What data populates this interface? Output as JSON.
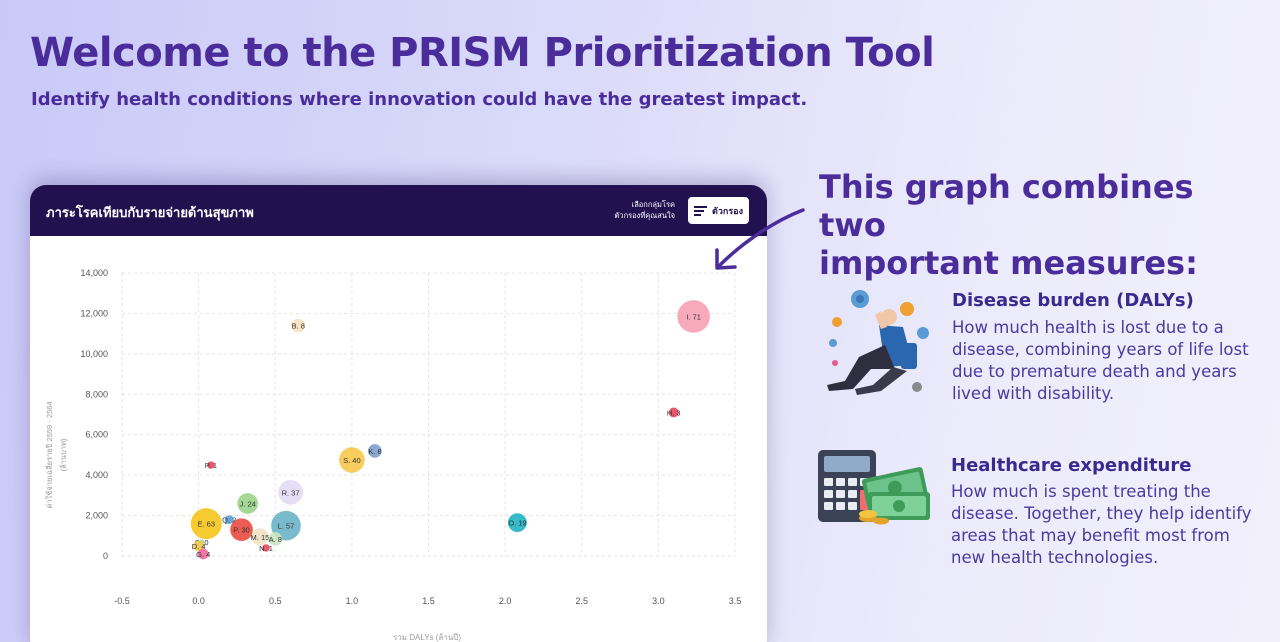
{
  "page": {
    "title": "Welcome to the PRISM Prioritization Tool",
    "subtitle": "Identify health conditions where innovation could have the greatest impact."
  },
  "card": {
    "title": "ภาระโรคเทียบกับรายจ่ายด้านสุขภาพ",
    "hint_line1": "เลือกกลุ่มโรค",
    "hint_line2": "ตัวกรองที่คุณสนใจ",
    "filter_label": "ตัวกรอง",
    "icons": {
      "filter": "filter-lines-icon"
    }
  },
  "right": {
    "heading_line1": "This graph combines two",
    "heading_line2": "important measures:",
    "items": [
      {
        "title": "Disease burden (DALYs)",
        "desc": "How much health is lost due to a disease, combining years of life lost due to premature death and years lived with disability.",
        "icon": "sick-person-virus-icon"
      },
      {
        "title": "Healthcare expenditure",
        "desc": "How much is spent treating the disease. Together, they help identify areas that may benefit most from new health technologies.",
        "icon": "calculator-money-icon"
      }
    ]
  },
  "colors": {
    "brand": "#4a2c9a",
    "header": "#21124f"
  },
  "chart_data": {
    "type": "scatter",
    "title": "",
    "xlabel": "รวม DALYs (ล้านปี)",
    "ylabel": "ค่าใช้จ่ายเฉลี่ยรายปี 2559 - 2564 (ล้านบาท)",
    "xlim": [
      -0.5,
      3.5
    ],
    "ylim": [
      0,
      14000
    ],
    "xticks": [
      "-0.5",
      "0.0",
      "0.5",
      "1.0",
      "1.5",
      "2.0",
      "2.5",
      "3.0",
      "3.5"
    ],
    "yticks": [
      "0",
      "2,000",
      "4,000",
      "6,000",
      "8,000",
      "10,000",
      "12,000",
      "14,000"
    ],
    "grid": true,
    "points": [
      {
        "label": "I. 71",
        "x": 3.23,
        "y": 11850,
        "size": 71,
        "color": "#f7a1b4"
      },
      {
        "label": "B. 8",
        "x": 0.65,
        "y": 11400,
        "size": 8,
        "color": "#fbe0c2"
      },
      {
        "label": "H. 3",
        "x": 3.1,
        "y": 7100,
        "size": 3,
        "color": "#e8455f"
      },
      {
        "label": "S. 40",
        "x": 1.0,
        "y": 4750,
        "size": 40,
        "color": "#f7c64b"
      },
      {
        "label": "K. 8",
        "x": 1.15,
        "y": 5200,
        "size": 8,
        "color": "#7f9fcc"
      },
      {
        "label": "P. 1",
        "x": 0.08,
        "y": 4500,
        "size": 1,
        "color": "#e8455f"
      },
      {
        "label": "R. 37",
        "x": 0.6,
        "y": 3150,
        "size": 37,
        "color": "#e2dcf5"
      },
      {
        "label": "J. 24",
        "x": 0.32,
        "y": 2600,
        "size": 24,
        "color": "#9bd38a"
      },
      {
        "label": "E. 63",
        "x": 0.05,
        "y": 1600,
        "size": 63,
        "color": "#f5c518"
      },
      {
        "label": "Q. 2",
        "x": 0.2,
        "y": 1800,
        "size": 2,
        "color": "#5aa0d8"
      },
      {
        "label": "L. 57",
        "x": 0.57,
        "y": 1500,
        "size": 57,
        "color": "#6ab4c8"
      },
      {
        "label": "P. 30",
        "x": 0.28,
        "y": 1300,
        "size": 30,
        "color": "#e94a3f"
      },
      {
        "label": "M. 15",
        "x": 0.4,
        "y": 950,
        "size": 15,
        "color": "#efe3c7"
      },
      {
        "label": "A. 8",
        "x": 0.5,
        "y": 850,
        "size": 8,
        "color": "#c9e6c0"
      },
      {
        "label": "N. 1",
        "x": 0.44,
        "y": 400,
        "size": 1,
        "color": "#e8455f"
      },
      {
        "label": "O. 19",
        "x": 2.08,
        "y": 1650,
        "size": 19,
        "color": "#21b3c4"
      },
      {
        "label": "C. 0",
        "x": 0.02,
        "y": 700,
        "size": 0,
        "color": "#a9d9a0"
      },
      {
        "label": "D. 4",
        "x": 0.0,
        "y": 500,
        "size": 4,
        "color": "#f2c94c"
      },
      {
        "label": "G. 4",
        "x": 0.03,
        "y": 100,
        "size": 4,
        "color": "#f06c9b"
      }
    ]
  }
}
